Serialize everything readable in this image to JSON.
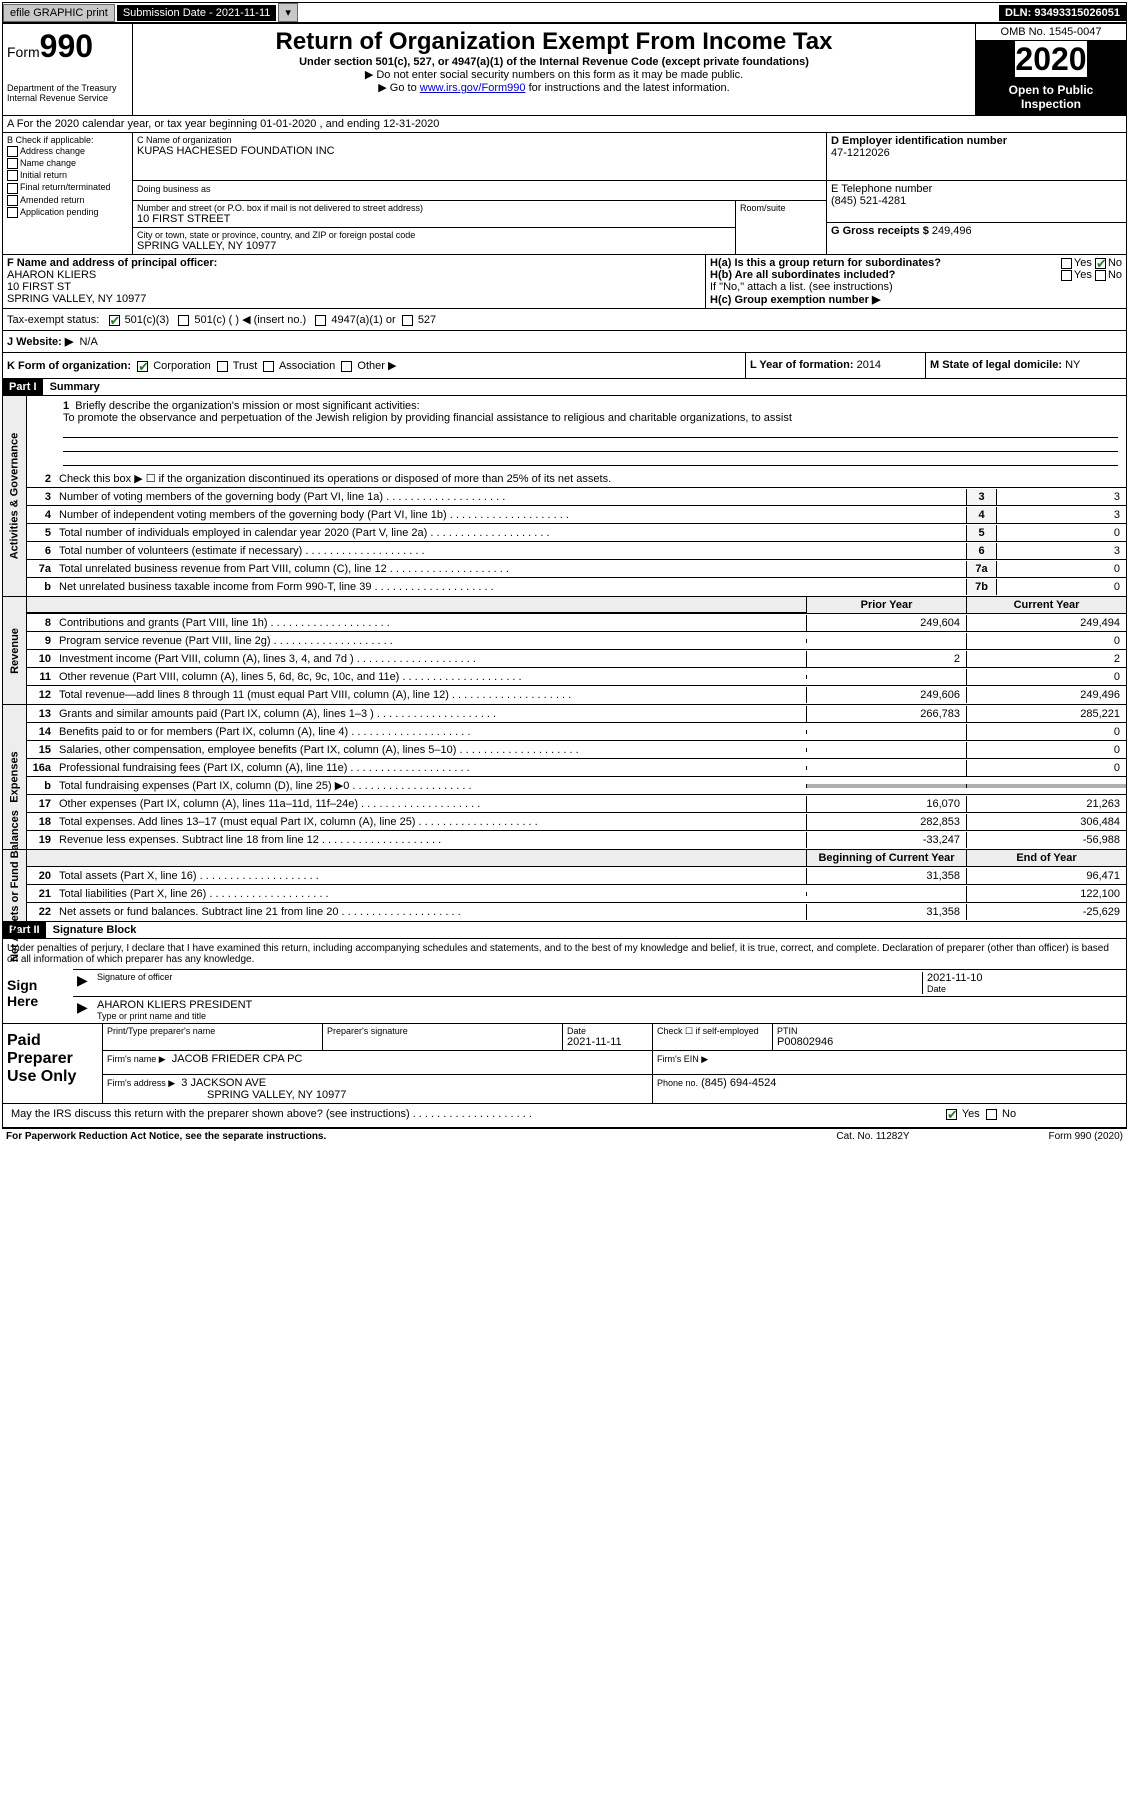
{
  "colors": {
    "black": "#000000",
    "white": "#ffffff",
    "grey_btn": "#c8c8c8",
    "grey_side": "#ededed",
    "grey_shade": "#b0b0b0",
    "link": "#0000cc",
    "check": "#2a7a2a"
  },
  "topbar": {
    "efile": "efile GRAPHIC print",
    "submission_label": "Submission Date - 2021-11-11",
    "dln": "DLN: 93493315026051"
  },
  "header": {
    "form_word": "Form",
    "form_num": "990",
    "dept": "Department of the Treasury",
    "irs": "Internal Revenue Service",
    "title": "Return of Organization Exempt From Income Tax",
    "subtitle": "Under section 501(c), 527, or 4947(a)(1) of the Internal Revenue Code (except private foundations)",
    "arrow1": "▶ Do not enter social security numbers on this form as it may be made public.",
    "arrow2_pre": "▶ Go to ",
    "arrow2_link": "www.irs.gov/Form990",
    "arrow2_post": " for instructions and the latest information.",
    "omb": "OMB No. 1545-0047",
    "year": "2020",
    "open": "Open to Public Inspection"
  },
  "row_a": "A For the 2020 calendar year, or tax year beginning 01-01-2020    , and ending 12-31-2020",
  "col_b": {
    "label": "B Check if applicable:",
    "opts": [
      "Address change",
      "Name change",
      "Initial return",
      "Final return/terminated",
      "Amended return",
      "Application pending"
    ]
  },
  "col_c": {
    "name_label": "C Name of organization",
    "name": "KUPAS HACHESED FOUNDATION INC",
    "dba_label": "Doing business as",
    "dba": "",
    "street_label": "Number and street (or P.O. box if mail is not delivered to street address)",
    "street": "10 FIRST STREET",
    "room_label": "Room/suite",
    "city_label": "City or town, state or province, country, and ZIP or foreign postal code",
    "city": "SPRING VALLEY, NY  10977"
  },
  "col_de": {
    "ein_label": "D Employer identification number",
    "ein": "47-1212026",
    "phone_label": "E Telephone number",
    "phone": "(845) 521-4281",
    "gross_label": "G Gross receipts $",
    "gross": "249,496"
  },
  "col_f": {
    "label": "F  Name and address of principal officer:",
    "name": "AHARON KLIERS",
    "street": "10 FIRST ST",
    "city": "SPRING VALLEY, NY  10977"
  },
  "col_h": {
    "ha": "H(a)  Is this a group return for subordinates?",
    "hb": "H(b)  Are all subordinates included?",
    "hb_note": "If \"No,\" attach a list. (see instructions)",
    "hc": "H(c)  Group exemption number ▶",
    "yes": "Yes",
    "no": "No"
  },
  "row_i": {
    "label": "Tax-exempt status:",
    "c3": "501(c)(3)",
    "c": "501(c) (  ) ◀ (insert no.)",
    "a1": "4947(a)(1) or",
    "s527": "527"
  },
  "row_j": {
    "label": "J   Website: ▶",
    "val": "N/A"
  },
  "row_k": {
    "label": "K Form of organization:",
    "opts": [
      "Corporation",
      "Trust",
      "Association",
      "Other ▶"
    ],
    "l_label": "L Year of formation:",
    "l_val": "2014",
    "m_label": "M State of legal domicile:",
    "m_val": "NY"
  },
  "part1": {
    "hdr": "Part I",
    "title": "Summary"
  },
  "gov": {
    "sidelabel": "Activities & Governance",
    "l1": "Briefly describe the organization's mission or most significant activities:",
    "mission": "To promote the observance and perpetuation of the Jewish religion by providing financial assistance to religious and charitable organizations, to assist",
    "l2": "Check this box ▶ ☐  if the organization discontinued its operations or disposed of more than 25% of its net assets.",
    "rows": [
      {
        "n": "3",
        "d": "Number of voting members of the governing body (Part VI, line 1a)",
        "b": "3",
        "v": "3"
      },
      {
        "n": "4",
        "d": "Number of independent voting members of the governing body (Part VI, line 1b)",
        "b": "4",
        "v": "3"
      },
      {
        "n": "5",
        "d": "Total number of individuals employed in calendar year 2020 (Part V, line 2a)",
        "b": "5",
        "v": "0"
      },
      {
        "n": "6",
        "d": "Total number of volunteers (estimate if necessary)",
        "b": "6",
        "v": "3"
      },
      {
        "n": "7a",
        "d": "Total unrelated business revenue from Part VIII, column (C), line 12",
        "b": "7a",
        "v": "0"
      },
      {
        "n": "b",
        "d": "Net unrelated business taxable income from Form 990-T, line 39",
        "b": "7b",
        "v": "0"
      }
    ]
  },
  "hdr2": {
    "py": "Prior Year",
    "cy": "Current Year"
  },
  "rev": {
    "sidelabel": "Revenue",
    "rows": [
      {
        "n": "8",
        "d": "Contributions and grants (Part VIII, line 1h)",
        "py": "249,604",
        "cy": "249,494"
      },
      {
        "n": "9",
        "d": "Program service revenue (Part VIII, line 2g)",
        "py": "",
        "cy": "0"
      },
      {
        "n": "10",
        "d": "Investment income (Part VIII, column (A), lines 3, 4, and 7d )",
        "py": "2",
        "cy": "2"
      },
      {
        "n": "11",
        "d": "Other revenue (Part VIII, column (A), lines 5, 6d, 8c, 9c, 10c, and 11e)",
        "py": "",
        "cy": "0"
      },
      {
        "n": "12",
        "d": "Total revenue—add lines 8 through 11 (must equal Part VIII, column (A), line 12)",
        "py": "249,606",
        "cy": "249,496"
      }
    ]
  },
  "exp": {
    "sidelabel": "Expenses",
    "rows": [
      {
        "n": "13",
        "d": "Grants and similar amounts paid (Part IX, column (A), lines 1–3 )",
        "py": "266,783",
        "cy": "285,221"
      },
      {
        "n": "14",
        "d": "Benefits paid to or for members (Part IX, column (A), line 4)",
        "py": "",
        "cy": "0"
      },
      {
        "n": "15",
        "d": "Salaries, other compensation, employee benefits (Part IX, column (A), lines 5–10)",
        "py": "",
        "cy": "0"
      },
      {
        "n": "16a",
        "d": "Professional fundraising fees (Part IX, column (A), line 11e)",
        "py": "",
        "cy": "0"
      },
      {
        "n": "b",
        "d": "Total fundraising expenses (Part IX, column (D), line 25) ▶0",
        "py": "shade",
        "cy": "shade"
      },
      {
        "n": "17",
        "d": "Other expenses (Part IX, column (A), lines 11a–11d, 11f–24e)",
        "py": "16,070",
        "cy": "21,263"
      },
      {
        "n": "18",
        "d": "Total expenses. Add lines 13–17 (must equal Part IX, column (A), line 25)",
        "py": "282,853",
        "cy": "306,484"
      },
      {
        "n": "19",
        "d": "Revenue less expenses. Subtract line 18 from line 12",
        "py": "-33,247",
        "cy": "-56,988"
      }
    ]
  },
  "hdr3": {
    "py": "Beginning of Current Year",
    "cy": "End of Year"
  },
  "net": {
    "sidelabel": "Net Assets or Fund Balances",
    "rows": [
      {
        "n": "20",
        "d": "Total assets (Part X, line 16)",
        "py": "31,358",
        "cy": "96,471"
      },
      {
        "n": "21",
        "d": "Total liabilities (Part X, line 26)",
        "py": "",
        "cy": "122,100"
      },
      {
        "n": "22",
        "d": "Net assets or fund balances. Subtract line 21 from line 20",
        "py": "31,358",
        "cy": "-25,629"
      }
    ]
  },
  "part2": {
    "hdr": "Part II",
    "title": "Signature Block"
  },
  "sig": {
    "penalties": "Under penalties of perjury, I declare that I have examined this return, including accompanying schedules and statements, and to the best of my knowledge and belief, it is true, correct, and complete. Declaration of preparer (other than officer) is based on all information of which preparer has any knowledge.",
    "sign_here": "Sign Here",
    "sig_officer": "Signature of officer",
    "date_lbl": "Date",
    "date_val": "2021-11-10",
    "name_title": "AHARON KLIERS  PRESIDENT",
    "type_lbl": "Type or print name and title"
  },
  "paid": {
    "label": "Paid Preparer Use Only",
    "print_lbl": "Print/Type preparer's name",
    "prep_sig_lbl": "Preparer's signature",
    "date_lbl": "Date",
    "date_val": "2021-11-11",
    "check_lbl": "Check ☐  if self-employed",
    "ptin_lbl": "PTIN",
    "ptin": "P00802946",
    "firm_name_lbl": "Firm's name    ▶",
    "firm_name": "JACOB FRIEDER CPA PC",
    "firm_ein_lbl": "Firm's EIN ▶",
    "firm_addr_lbl": "Firm's address ▶",
    "firm_addr1": "3 JACKSON AVE",
    "firm_addr2": "SPRING VALLEY, NY  10977",
    "phone_lbl": "Phone no.",
    "phone": "(845) 694-4524"
  },
  "discuss": {
    "q": "May the IRS discuss this return with the preparer shown above? (see instructions)",
    "yes": "Yes",
    "no": "No"
  },
  "footer": {
    "l": "For Paperwork Reduction Act Notice, see the separate instructions.",
    "m": "Cat. No. 11282Y",
    "r": "Form 990 (2020)"
  }
}
